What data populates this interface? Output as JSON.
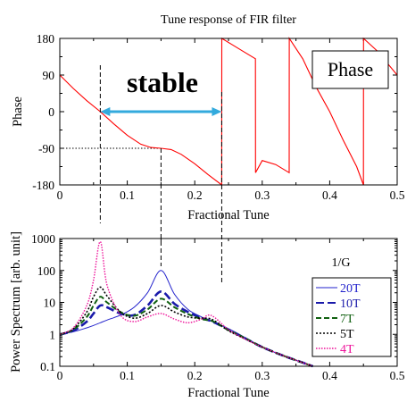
{
  "title": "Tune response of FIR filter",
  "colors": {
    "phase_curve": "#ff0000",
    "arrow": "#33aadd",
    "guide": "#000000",
    "series_20T": "#2222cc",
    "series_10T": "#1a1aaa",
    "series_7T": "#106010",
    "series_5T": "#000000",
    "series_4T": "#ee1199"
  },
  "chart_data": [
    {
      "type": "line",
      "panel": "top",
      "xlabel": "Fractional Tune",
      "ylabel": "Phase",
      "xlim": [
        0,
        0.5
      ],
      "ylim": [
        -180,
        180
      ],
      "xticks": [
        "0",
        "0.1",
        "0.2",
        "0.3",
        "0.4",
        "0.5"
      ],
      "yticks": [
        "180",
        "90",
        "0",
        "-90",
        "-180"
      ],
      "annotations": {
        "stable_label": "stable",
        "stable_range": [
          0.06,
          0.24
        ],
        "phase_label": "Phase",
        "flat_level_deg": -90,
        "flat_tune": 0.15
      },
      "series": [
        {
          "x": [
            0,
            0.02,
            0.04,
            0.06,
            0.08,
            0.1,
            0.12,
            0.135,
            0.15,
            0.165,
            0.18,
            0.2,
            0.22,
            0.24,
            0.2401,
            0.255,
            0.27,
            0.29,
            0.2901,
            0.3,
            0.32,
            0.34,
            0.3401,
            0.36,
            0.38,
            0.4,
            0.42,
            0.44,
            0.45,
            0.4501,
            0.47,
            0.5
          ],
          "y": [
            90,
            57,
            27,
            0,
            -30,
            -58,
            -80,
            -88,
            -90,
            -93,
            -105,
            -128,
            -155,
            -180,
            180,
            165,
            150,
            130,
            -150,
            -120,
            -130,
            -150,
            180,
            130,
            60,
            0,
            -70,
            -135,
            -180,
            180,
            150,
            90
          ]
        }
      ]
    },
    {
      "type": "line",
      "panel": "bottom",
      "xlabel": "Fractional Tune",
      "ylabel": "Power Spectrum [arb. unit]",
      "yscale": "log",
      "xlim": [
        0,
        0.5
      ],
      "ylim": [
        0.1,
        1000
      ],
      "xticks": [
        "0",
        "0.1",
        "0.2",
        "0.3",
        "0.4",
        "0.5"
      ],
      "yticks": [
        "1000",
        "100",
        "10",
        "1",
        "0.1"
      ],
      "legend_title": "1/G",
      "legend_position": "right",
      "x": [
        0,
        0.02,
        0.04,
        0.05,
        0.06,
        0.07,
        0.09,
        0.11,
        0.13,
        0.15,
        0.17,
        0.19,
        0.21,
        0.22,
        0.23,
        0.25,
        0.27,
        0.3,
        0.33,
        0.36,
        0.375
      ],
      "series": [
        {
          "name": "20T",
          "values": [
            1,
            1.2,
            1.6,
            1.9,
            2.3,
            2.8,
            4,
            7,
            20,
            100,
            18,
            6,
            3.5,
            2.8,
            2.3,
            1.5,
            0.9,
            0.4,
            0.22,
            0.13,
            0.1
          ]
        },
        {
          "name": "10T",
          "values": [
            1,
            1.3,
            2.5,
            4.5,
            8,
            7,
            4.5,
            4,
            8,
            22,
            9,
            5,
            3.2,
            2.8,
            2.3,
            1.4,
            0.85,
            0.4,
            0.22,
            0.13,
            0.1
          ]
        },
        {
          "name": "7T",
          "values": [
            1,
            1.4,
            3.5,
            8,
            15,
            10,
            5,
            3.8,
            6,
            13,
            7,
            4.3,
            3,
            2.8,
            2.4,
            1.35,
            0.85,
            0.4,
            0.22,
            0.13,
            0.1
          ]
        },
        {
          "name": "5T",
          "values": [
            1,
            1.5,
            5,
            15,
            30,
            16,
            5,
            3.2,
            4.5,
            8,
            5,
            3.5,
            3.2,
            3.2,
            2.6,
            1.3,
            0.8,
            0.4,
            0.22,
            0.13,
            0.1
          ]
        },
        {
          "name": "4T",
          "values": [
            1,
            1.6,
            8,
            50,
            800,
            35,
            4,
            2.5,
            3.5,
            4.5,
            3,
            2.3,
            3,
            4,
            3.3,
            1.4,
            0.8,
            0.4,
            0.22,
            0.13,
            0.1
          ]
        }
      ]
    }
  ]
}
